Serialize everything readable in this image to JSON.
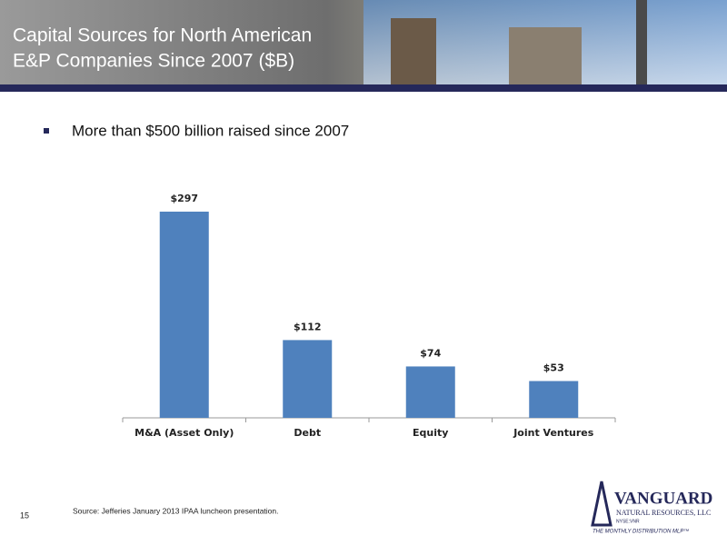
{
  "header": {
    "title_lines": [
      "Capital Sources for North American",
      "E&P Companies Since 2007 ($B)"
    ]
  },
  "bullets": [
    "More than $500 billion raised since 2007"
  ],
  "chart_data": {
    "type": "bar",
    "categories": [
      "M&A (Asset Only)",
      "Debt",
      "Equity",
      "Joint Ventures"
    ],
    "values": [
      297,
      112,
      74,
      53
    ],
    "value_labels": [
      "$297",
      "$112",
      "$74",
      "$53"
    ],
    "color": "#4f81bd",
    "grid": false
  },
  "footer": {
    "page_number": "15",
    "source": "Source:  Jefferies January 2013 IPAA luncheon presentation."
  },
  "logo": {
    "name": "VANGUARD",
    "subtitle": "NATURAL RESOURCES, LLC",
    "ticker": "NYSE:VNR",
    "tagline": "THE MONTHLY DISTRIBUTION MLP™"
  }
}
